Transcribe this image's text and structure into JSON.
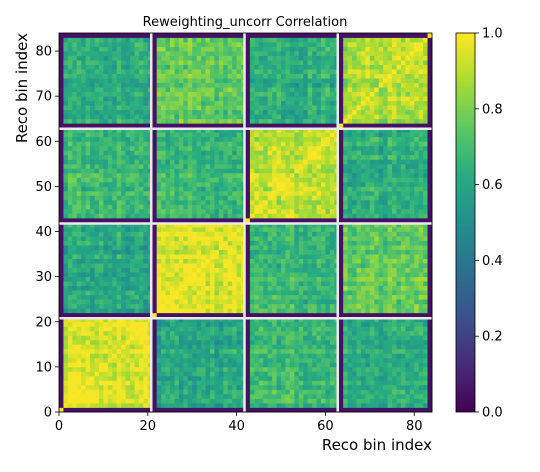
{
  "chart_data": {
    "type": "heatmap",
    "title": "Reweighting_uncorr Correlation",
    "xlabel": "Reco bin index",
    "ylabel": "Reco bin index",
    "n_bins": 84,
    "xlim": [
      0,
      84
    ],
    "ylim": [
      0,
      84
    ],
    "x_ticks": [
      0,
      20,
      40,
      60,
      80
    ],
    "y_ticks": [
      0,
      10,
      20,
      30,
      40,
      50,
      60,
      70,
      80
    ],
    "block_edges": [
      0,
      21,
      42,
      63,
      84
    ],
    "colorbar": {
      "colormap": "viridis",
      "range": [
        0.0,
        1.0
      ],
      "ticks": [
        "0.0",
        "0.2",
        "0.4",
        "0.6",
        "0.8",
        "1.0"
      ]
    },
    "block_mean_correlation": [
      [
        0.92,
        0.6,
        0.68,
        0.62
      ],
      [
        0.6,
        0.92,
        0.67,
        0.75
      ],
      [
        0.68,
        0.67,
        0.88,
        0.62
      ],
      [
        0.62,
        0.75,
        0.62,
        0.84
      ]
    ],
    "diagonal_value": 1.0,
    "edge_bin_value": 0.05
  }
}
